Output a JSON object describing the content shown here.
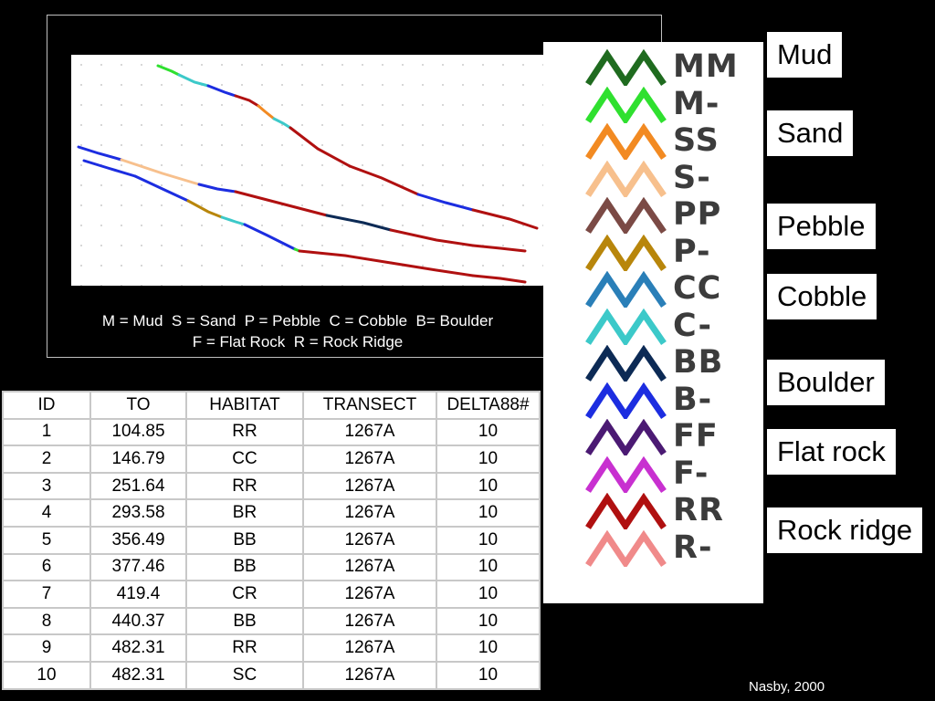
{
  "caption": {
    "line1": "M = Mud  S = Sand  P = Pebble  C = Cobble  B= Boulder",
    "line2": "F = Flat Rock  R = Rock Ridge"
  },
  "legend": [
    {
      "code": "MM",
      "color": "#1f6b1f"
    },
    {
      "code": "M-",
      "color": "#2fe02f"
    },
    {
      "code": "SS",
      "color": "#f28a22"
    },
    {
      "code": "S-",
      "color": "#f7c08d"
    },
    {
      "code": "PP",
      "color": "#7b4a45"
    },
    {
      "code": "P-",
      "color": "#b8860b"
    },
    {
      "code": "CC",
      "color": "#2a7fb8"
    },
    {
      "code": "C-",
      "color": "#3cc9c9"
    },
    {
      "code": "BB",
      "color": "#0c2a55"
    },
    {
      "code": "B-",
      "color": "#1c2de0"
    },
    {
      "code": "FF",
      "color": "#4b1a73"
    },
    {
      "code": "F-",
      "color": "#c830d0"
    },
    {
      "code": "RR",
      "color": "#b01010"
    },
    {
      "code": "R-",
      "color": "#f08a8a"
    }
  ],
  "substrate_types": {
    "mud": "Mud",
    "sand": "Sand",
    "pebble": "Pebble",
    "cobble": "Cobble",
    "boulder": "Boulder",
    "flat_rock": "Flat rock",
    "rock_ridge": "Rock ridge"
  },
  "table": {
    "headers": [
      "ID",
      "TO",
      "HABITAT",
      "TRANSECT",
      "DELTA88#"
    ],
    "rows": [
      [
        "1",
        "104.85",
        "RR",
        "1267A",
        "10"
      ],
      [
        "2",
        "146.79",
        "CC",
        "1267A",
        "10"
      ],
      [
        "3",
        "251.64",
        "RR",
        "1267A",
        "10"
      ],
      [
        "4",
        "293.58",
        "BR",
        "1267A",
        "10"
      ],
      [
        "5",
        "356.49",
        "BB",
        "1267A",
        "10"
      ],
      [
        "6",
        "377.46",
        "BB",
        "1267A",
        "10"
      ],
      [
        "7",
        "419.4",
        "CR",
        "1267A",
        "10"
      ],
      [
        "8",
        "440.37",
        "BB",
        "1267A",
        "10"
      ],
      [
        "9",
        "482.31",
        "RR",
        "1267A",
        "10"
      ],
      [
        "10",
        "482.31",
        "SC",
        "1267A",
        "10"
      ]
    ]
  },
  "credit": "Nasby, 2000"
}
